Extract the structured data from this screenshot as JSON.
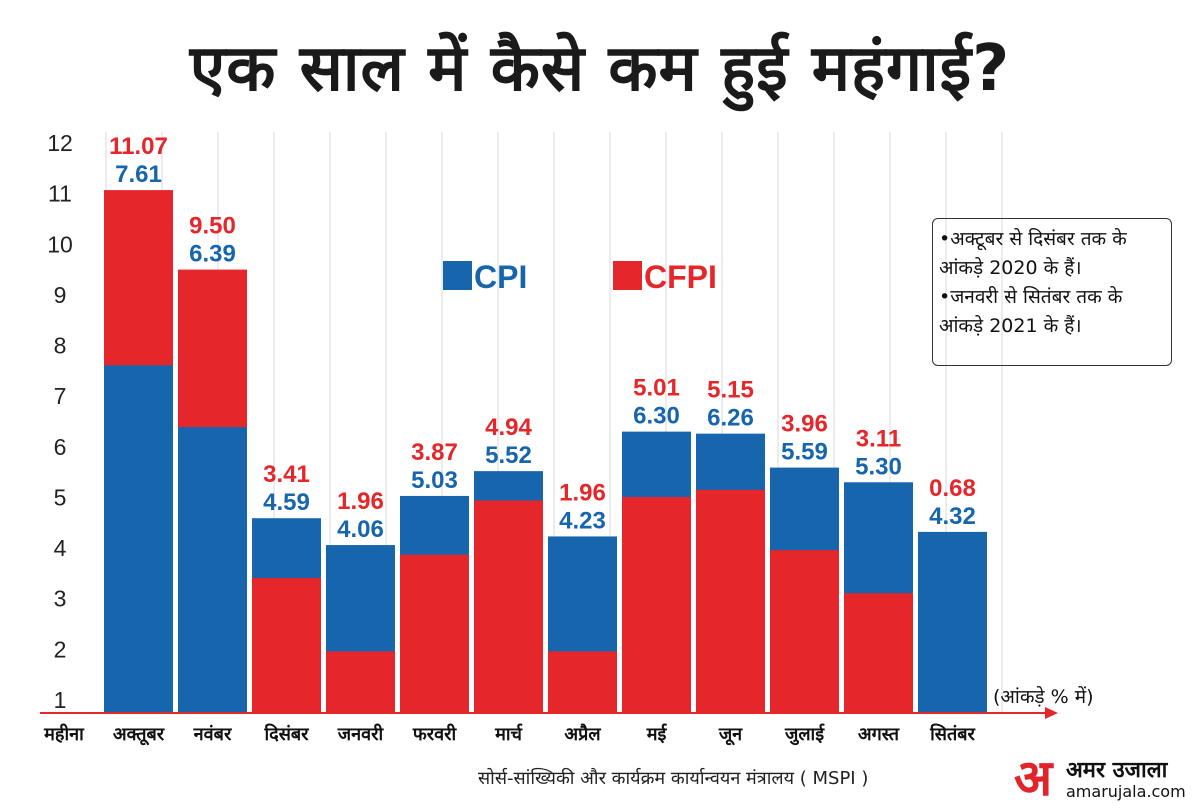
{
  "title": "एक साल में कैसे कम हुई महंगाई?",
  "chart_data": {
    "type": "bar",
    "categories": [
      "अक्तूबर",
      "नवंबर",
      "दिसंबर",
      "जनवरी",
      "फरवरी",
      "मार्च",
      "अप्रैल",
      "मई",
      "जून",
      "जुलाई",
      "अगस्त",
      "सितंबर"
    ],
    "x_first_label": "महीना",
    "series": [
      {
        "name": "CPI",
        "color": "#1765ad",
        "values": [
          7.61,
          6.39,
          4.59,
          4.06,
          5.03,
          5.52,
          4.23,
          6.3,
          6.26,
          5.59,
          5.3,
          4.32
        ],
        "labels": [
          "7.61",
          "6.39",
          "4.59",
          "4.06",
          "5.03",
          "5.52",
          "4.23",
          "6.30",
          "6.26",
          "5.59",
          "5.30",
          "4.32"
        ]
      },
      {
        "name": "CFPI",
        "color": "#e5262a",
        "values": [
          11.07,
          9.5,
          3.41,
          1.96,
          3.87,
          4.94,
          1.96,
          5.01,
          5.15,
          3.96,
          3.11,
          0.68
        ],
        "labels": [
          "11.07",
          "9.50",
          "3.41",
          "1.96",
          "3.87",
          "4.94",
          "1.96",
          "5.01",
          "5.15",
          "3.96",
          "3.11",
          "0.68"
        ]
      }
    ],
    "yticks": [
      "1",
      "2",
      "3",
      "4",
      "5",
      "6",
      "7",
      "8",
      "9",
      "10",
      "11",
      "12"
    ],
    "ylim": [
      0.68,
      12
    ],
    "grid": true,
    "legend_position": "top-center",
    "unit_note": "(आंकड़े % में)"
  },
  "notes": [
    "•अक्टूबर से दिसंबर तक के आंकड़े 2020 के हैं।",
    "•जनवरी से सितंबर तक के आंकड़े 2021 के हैं।"
  ],
  "source": "सोर्स-सांख्यिकी और कार्यक्रम कार्यान्वयन मंत्रालय ( MSPI )",
  "logo": {
    "mark": "अ",
    "name": "अमर उजाला",
    "url": "amarujala.com"
  },
  "colors": {
    "cpi": "#1765ad",
    "cfpi": "#e5262a",
    "axis": "#e5262a"
  }
}
